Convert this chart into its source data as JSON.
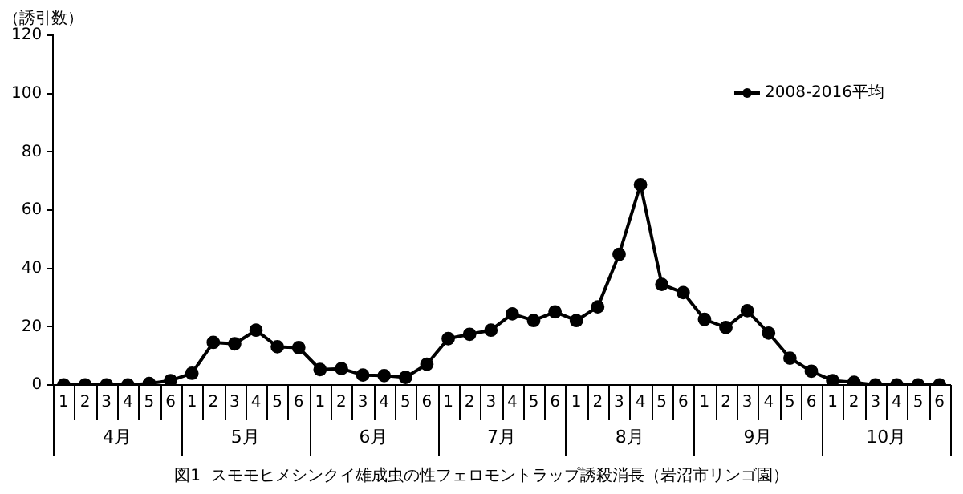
{
  "chart_data": {
    "type": "line",
    "title": "図1  スモモヒメシンクイ雄成虫の性フェロモントラップ誘殺消長（岩沼市リンゴ園）",
    "ylabel": "（誘引数）",
    "categories": [
      "1",
      "2",
      "3",
      "4",
      "5",
      "6",
      "1",
      "2",
      "3",
      "4",
      "5",
      "6",
      "1",
      "2",
      "3",
      "4",
      "5",
      "6",
      "1",
      "2",
      "3",
      "4",
      "5",
      "6",
      "1",
      "2",
      "3",
      "4",
      "5",
      "6",
      "1",
      "2",
      "3",
      "4",
      "5",
      "6",
      "1",
      "2",
      "3",
      "4",
      "5",
      "6"
    ],
    "annotations": [
      "4月",
      "5月",
      "6月",
      "7月",
      "8月",
      "9月",
      "10月"
    ],
    "series": [
      {
        "name": "2008-2016平均",
        "color": "#000000",
        "values": [
          0,
          0,
          0,
          0,
          0.5,
          1.5,
          4,
          14.6,
          14.1,
          18.8,
          13.1,
          12.8,
          5.3,
          5.6,
          3.4,
          3.2,
          2.6,
          7.1,
          15.9,
          17.4,
          18.8,
          24.4,
          22.1,
          25.1,
          22.1,
          26.8,
          44.8,
          68.7,
          34.5,
          31.7,
          22.5,
          19.7,
          25.5,
          17.8,
          9.2,
          4.7,
          1.5,
          0.9,
          0,
          0,
          0,
          0
        ]
      }
    ],
    "ylim": [
      0,
      120
    ],
    "yticks": [
      0,
      20,
      40,
      60,
      80,
      100,
      120
    ],
    "grid": false,
    "legend": "top right",
    "marker": "circle",
    "line_style": "solid"
  }
}
